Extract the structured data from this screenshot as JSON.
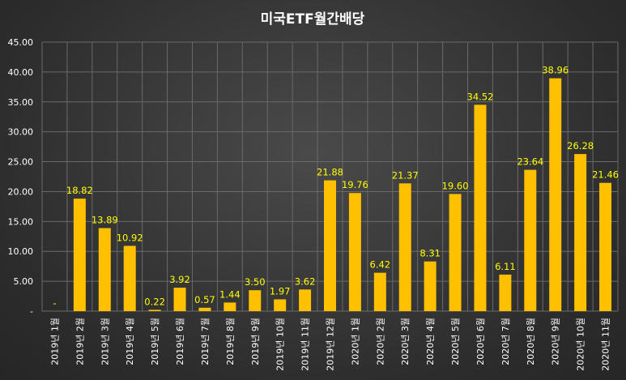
{
  "chart_data": {
    "type": "bar",
    "title": "미국ETF월간배당",
    "xlabel": "",
    "ylabel": "",
    "ylim": [
      0,
      45
    ],
    "yticks": [
      "-",
      "5.00",
      "10.00",
      "15.00",
      "20.00",
      "25.00",
      "30.00",
      "35.00",
      "40.00",
      "45.00"
    ],
    "grid": true,
    "legend": "none",
    "bar_color": "#ffc000",
    "label_color": "#ffff00",
    "categories": [
      "2019년 1월",
      "2019년 2월",
      "2019년 3월",
      "2019년 4월",
      "2019년 5월",
      "2019년 6월",
      "2019년 7월",
      "2019년 8월",
      "2019년 9월",
      "2019년 10월",
      "2019년 11월",
      "2019년 12월",
      "2020년 1월",
      "2020년 2월",
      "2020년 3월",
      "2020년 4월",
      "2020년 5월",
      "2020년 6월",
      "2020년 7월",
      "2020년 8월",
      "2020년 9월",
      "2020년 10월",
      "2020년 11월"
    ],
    "values": [
      0,
      18.82,
      13.89,
      10.92,
      0.22,
      3.92,
      0.57,
      1.44,
      3.5,
      1.97,
      3.62,
      21.88,
      19.76,
      6.42,
      21.37,
      8.31,
      19.6,
      34.52,
      6.11,
      23.64,
      38.96,
      26.28,
      21.46
    ],
    "value_labels": [
      "-",
      "18.82",
      "13.89",
      "10.92",
      "0.22",
      "3.92",
      "0.57",
      "1.44",
      "3.50",
      "1.97",
      "3.62",
      "21.88",
      "19.76",
      "6.42",
      "21.37",
      "8.31",
      "19.60",
      "34.52",
      "6.11",
      "23.64",
      "38.96",
      "26.28",
      "21.46"
    ]
  }
}
